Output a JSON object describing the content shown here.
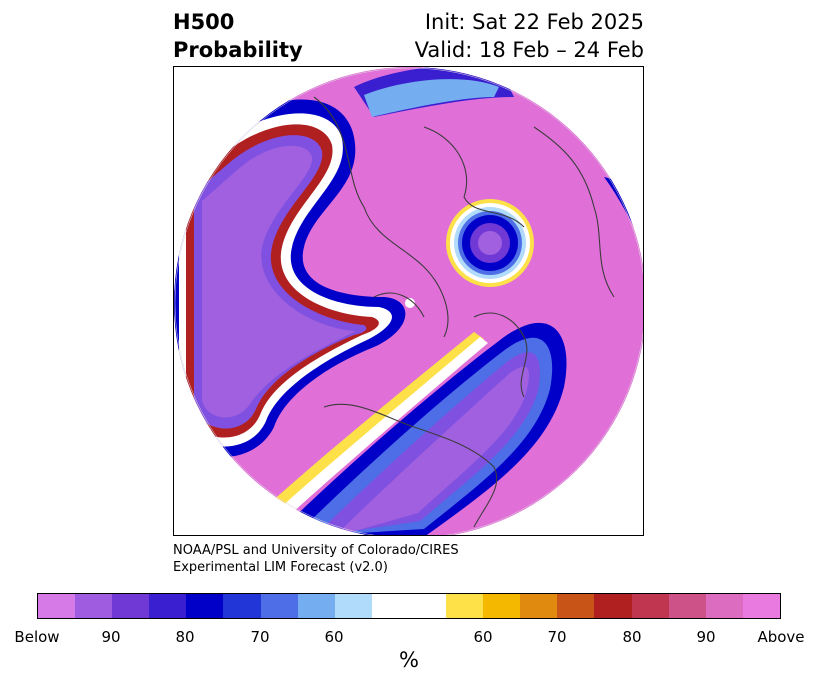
{
  "title": {
    "line1": "H500",
    "line2": "Probability",
    "init": "Init: Sat 22 Feb 2025",
    "valid": "Valid: 18 Feb – 24 Feb"
  },
  "credit": {
    "line1": "NOAA/PSL and University of Colorado/CIRES",
    "line2": "Experimental LIM Forecast (v2.0)"
  },
  "colorbar": {
    "unit": "%",
    "colors": [
      "#d67ae8",
      "#a05ce0",
      "#7039d6",
      "#3a1fd0",
      "#0000c8",
      "#2236d8",
      "#4d6ee6",
      "#75aef0",
      "#b1dbfa",
      "#ffffff",
      "#ffffff",
      "#fee048",
      "#f5b800",
      "#e08a10",
      "#c85418",
      "#b02020",
      "#c03650",
      "#cd5288",
      "#dc6cc0",
      "#e87ae0"
    ],
    "tick_labels": [
      "Below",
      "90",
      "80",
      "70",
      "60",
      "60",
      "70",
      "80",
      "90",
      "Above"
    ]
  },
  "colors": {
    "below_strong": "#a060e0",
    "below_mid": "#3a1fd0",
    "above_strong": "#e070d8",
    "above_mid": "#c03650"
  }
}
